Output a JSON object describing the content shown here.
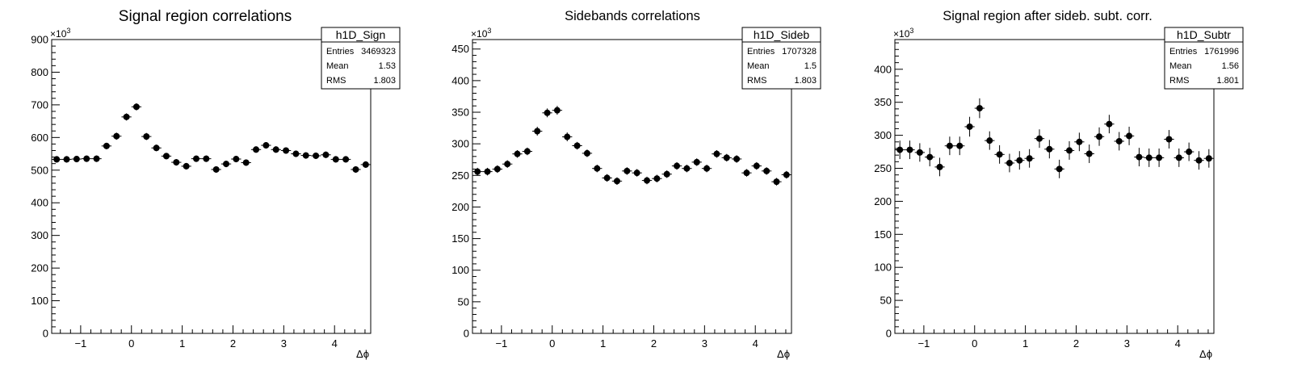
{
  "chart_data": [
    {
      "type": "scatter",
      "title": "Signal region correlations",
      "xlabel": "Δϕ",
      "ylabel": "",
      "exponent": "10",
      "exponent_power": "3",
      "xlim": [
        -1.5708,
        4.7124
      ],
      "ylim": [
        0,
        900
      ],
      "yticks": [
        0,
        100,
        200,
        300,
        400,
        500,
        600,
        700,
        800,
        900
      ],
      "xticks": [
        -1,
        0,
        1,
        2,
        3,
        4
      ],
      "xtick_labels": [
        "−1",
        "0",
        "1",
        "2",
        "3",
        "4"
      ],
      "stats": {
        "name": "h1D_Sign",
        "rows": [
          {
            "label": "Entries",
            "value": "3469323"
          },
          {
            "label": "Mean",
            "value": "1.53"
          },
          {
            "label": "RMS",
            "value": "1.803"
          }
        ]
      },
      "series": [
        {
          "values": [
            533,
            533,
            534,
            535,
            535,
            574,
            604,
            663,
            694,
            603,
            568,
            543,
            524,
            512,
            535,
            535,
            502,
            519,
            534,
            523,
            563,
            576,
            563,
            560,
            550,
            545,
            544,
            547,
            533,
            533,
            502,
            517
          ],
          "errors": [
            10,
            10,
            10,
            10,
            10,
            10,
            11,
            11,
            11,
            11,
            10,
            10,
            10,
            10,
            10,
            10,
            10,
            10,
            10,
            10,
            10,
            10,
            10,
            10,
            10,
            10,
            10,
            10,
            10,
            10,
            10,
            10
          ]
        }
      ]
    },
    {
      "type": "scatter",
      "title": "Sidebands correlations",
      "xlabel": "Δϕ",
      "ylabel": "",
      "exponent": "10",
      "exponent_power": "3",
      "xlim": [
        -1.5708,
        4.7124
      ],
      "ylim": [
        0,
        465
      ],
      "yticks": [
        0,
        50,
        100,
        150,
        200,
        250,
        300,
        350,
        400,
        450
      ],
      "xticks": [
        -1,
        0,
        1,
        2,
        3,
        4
      ],
      "xtick_labels": [
        "−1",
        "0",
        "1",
        "2",
        "3",
        "4"
      ],
      "stats": {
        "name": "h1D_Sideb",
        "rows": [
          {
            "label": "Entries",
            "value": "1707328"
          },
          {
            "label": "Mean",
            "value": "1.5"
          },
          {
            "label": "RMS",
            "value": "1.803"
          }
        ]
      },
      "series": [
        {
          "values": [
            256,
            256,
            260,
            268,
            284,
            288,
            320,
            349,
            353,
            311,
            297,
            285,
            261,
            246,
            241,
            257,
            254,
            242,
            245,
            252,
            265,
            261,
            271,
            261,
            284,
            278,
            276,
            254,
            265,
            257,
            240,
            251
          ],
          "errors": [
            6,
            6,
            6,
            6,
            6,
            6,
            7,
            7,
            7,
            7,
            6,
            6,
            6,
            6,
            6,
            6,
            6,
            6,
            6,
            6,
            6,
            6,
            6,
            6,
            6,
            6,
            6,
            6,
            6,
            6,
            6,
            6
          ]
        }
      ]
    },
    {
      "type": "scatter",
      "title": "Signal region after sideb. subt. corr.",
      "xlabel": "Δϕ",
      "ylabel": "",
      "exponent": "10",
      "exponent_power": "3",
      "xlim": [
        -1.5708,
        4.7124
      ],
      "ylim": [
        0,
        445
      ],
      "yticks": [
        0,
        50,
        100,
        150,
        200,
        250,
        300,
        350,
        400
      ],
      "xticks": [
        -1,
        0,
        1,
        2,
        3,
        4
      ],
      "xtick_labels": [
        "−1",
        "0",
        "1",
        "2",
        "3",
        "4"
      ],
      "stats": {
        "name": "h1D_Subtr",
        "rows": [
          {
            "label": "Entries",
            "value": "1761996"
          },
          {
            "label": "Mean",
            "value": "1.56"
          },
          {
            "label": "RMS",
            "value": "1.801"
          }
        ]
      },
      "series": [
        {
          "values": [
            278,
            278,
            274,
            267,
            252,
            284,
            284,
            313,
            341,
            292,
            271,
            258,
            262,
            265,
            295,
            279,
            249,
            277,
            290,
            272,
            298,
            317,
            291,
            299,
            267,
            266,
            266,
            294,
            266,
            275,
            262,
            265
          ],
          "errors": [
            14,
            14,
            14,
            14,
            14,
            14,
            14,
            15,
            15,
            14,
            14,
            14,
            14,
            14,
            14,
            14,
            14,
            14,
            14,
            14,
            14,
            14,
            14,
            14,
            14,
            14,
            14,
            14,
            14,
            14,
            14,
            14
          ]
        }
      ]
    }
  ]
}
